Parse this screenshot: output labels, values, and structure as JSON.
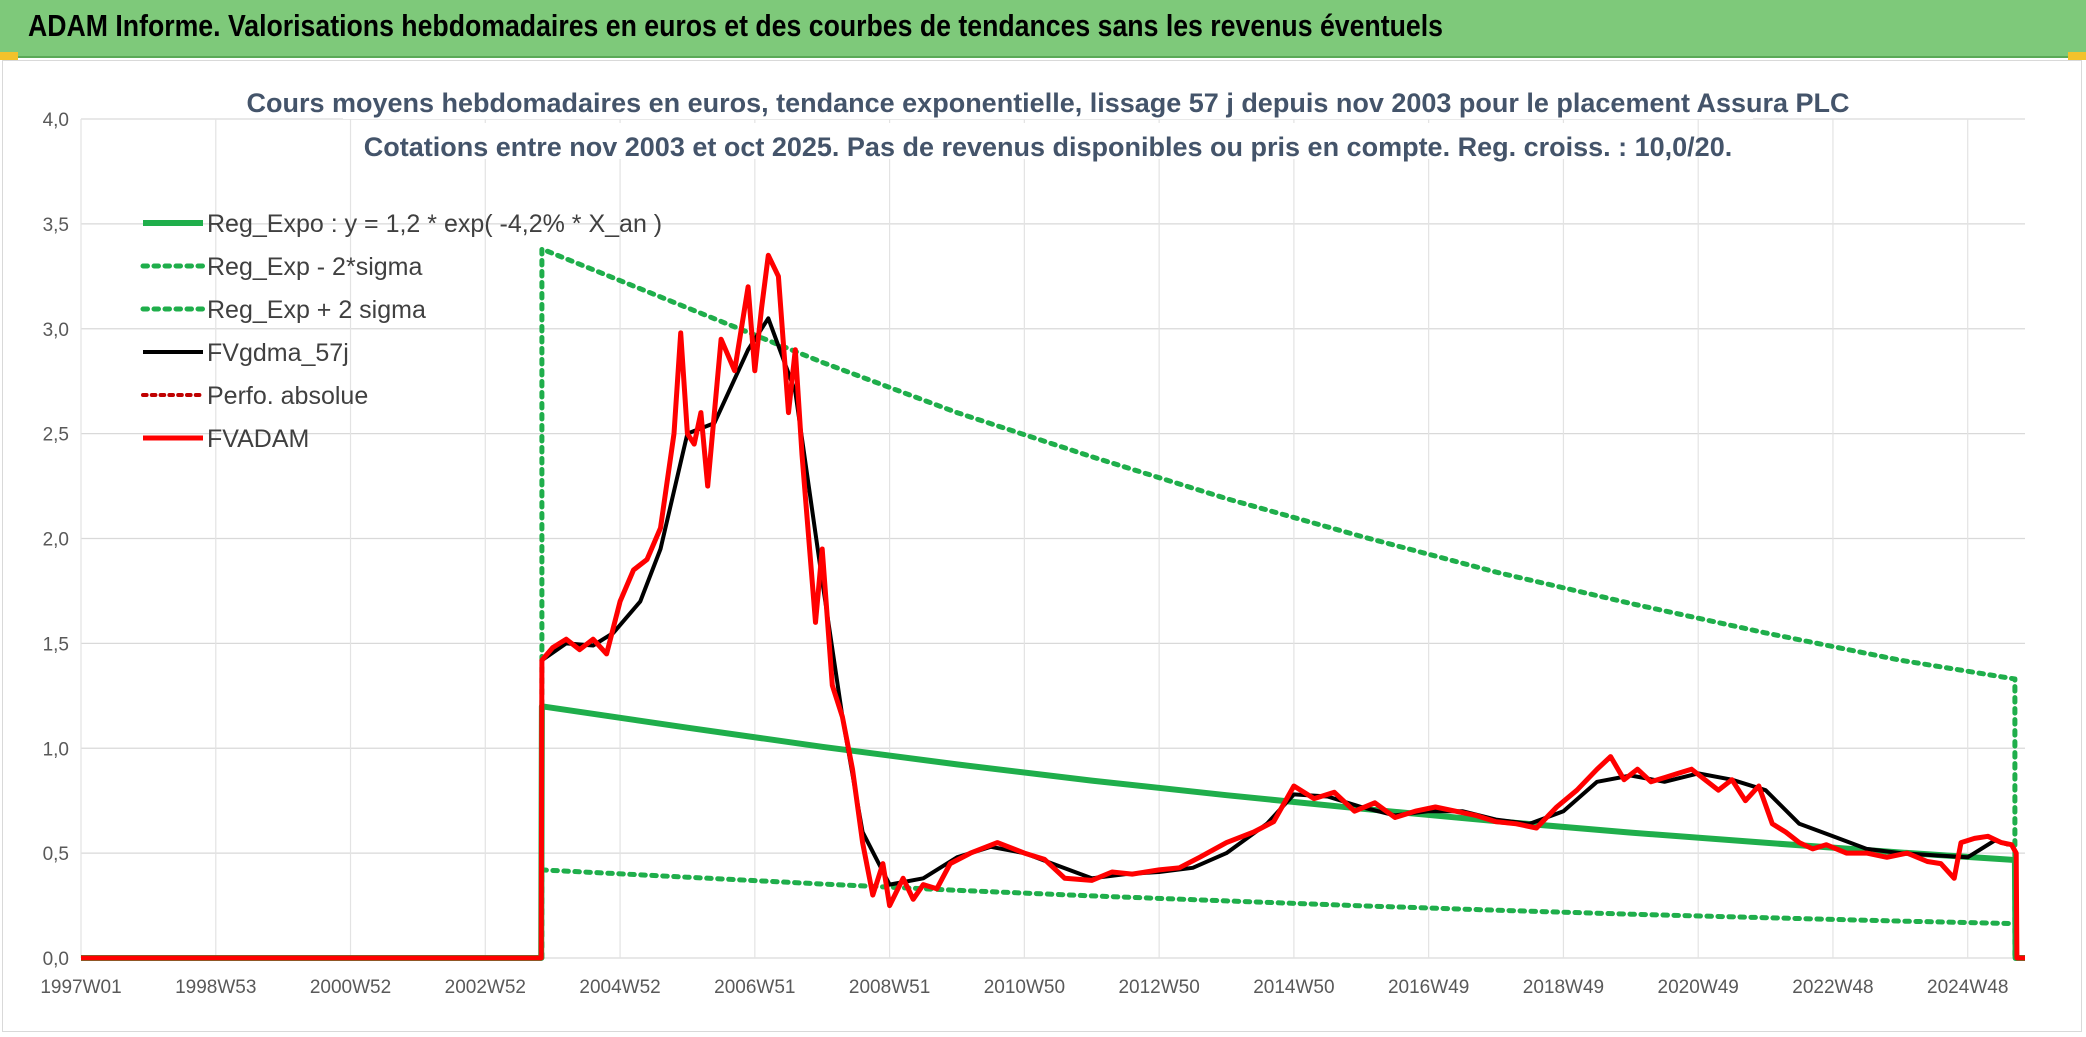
{
  "banner": {
    "title": "ADAM Informe. Valorisations hebdomadaires en euros et des courbes de tendances sans les revenus éventuels",
    "background": "#7ec97a",
    "corner_accent": "#f2c22b"
  },
  "chart_data": {
    "type": "line",
    "title": "Cours moyens hebdomadaires en euros, tendance exponentielle, lissage 57 j depuis nov 2003 pour le placement Assura PLC",
    "subtitle": "Cotations entre nov 2003 et oct 2025. Pas de revenus disponibles ou pris en compte. Reg. croiss. : 10,0/20.",
    "xlabel": "",
    "ylabel": "",
    "xlim": [
      1997.0,
      2025.85
    ],
    "ylim": [
      0,
      4
    ],
    "x_ticks": [
      {
        "label": "1997W01",
        "x": 1997.0
      },
      {
        "label": "1998W53",
        "x": 1999.0
      },
      {
        "label": "2000W52",
        "x": 2001.0
      },
      {
        "label": "2002W52",
        "x": 2003.0
      },
      {
        "label": "2004W52",
        "x": 2005.0
      },
      {
        "label": "2006W51",
        "x": 2007.0
      },
      {
        "label": "2008W51",
        "x": 2009.0
      },
      {
        "label": "2010W50",
        "x": 2011.0
      },
      {
        "label": "2012W50",
        "x": 2013.0
      },
      {
        "label": "2014W50",
        "x": 2015.0
      },
      {
        "label": "2016W49",
        "x": 2017.0
      },
      {
        "label": "2018W49",
        "x": 2019.0
      },
      {
        "label": "2020W49",
        "x": 2021.0
      },
      {
        "label": "2022W48",
        "x": 2023.0
      },
      {
        "label": "2024W48",
        "x": 2025.0
      }
    ],
    "y_ticks": [
      "0,0",
      "0,5",
      "1,0",
      "1,5",
      "2,0",
      "2,5",
      "3,0",
      "3,5",
      "4,0"
    ],
    "y_tick_values": [
      0,
      0.5,
      1,
      1.5,
      2,
      2.5,
      3,
      3.5,
      4
    ],
    "grid": true,
    "legend_position": "top-left",
    "series": [
      {
        "name": "Reg_Expo : y = 1,2 * exp( -4,2% *  X_an )",
        "style": "solid",
        "color": "#1fae4b",
        "width": 6,
        "x": [
          1997.0,
          2003.83,
          2003.84,
          2006,
          2008,
          2010,
          2012,
          2014,
          2016,
          2018,
          2020,
          2022,
          2024,
          2025.7,
          2025.71,
          2025.85
        ],
        "y": [
          0,
          0,
          1.2,
          1.098,
          1.007,
          0.923,
          0.846,
          0.776,
          0.712,
          0.652,
          0.598,
          0.549,
          0.503,
          0.467,
          0,
          0
        ]
      },
      {
        "name": "Reg_Exp - 2*sigma",
        "style": "dotted",
        "color": "#1fae4b",
        "width": 5,
        "x": [
          2003.84,
          2006,
          2008,
          2010,
          2012,
          2014,
          2016,
          2018,
          2020,
          2022,
          2024,
          2025.7
        ],
        "y": [
          0.42,
          0.385,
          0.353,
          0.323,
          0.296,
          0.272,
          0.249,
          0.228,
          0.209,
          0.192,
          0.176,
          0.164
        ]
      },
      {
        "name": "Reg_Exp + 2 sigma",
        "style": "dotted",
        "color": "#1fae4b",
        "width": 5,
        "x": [
          2003.84,
          2003.84,
          2006,
          2008,
          2010,
          2012,
          2014,
          2016,
          2018,
          2020,
          2022,
          2024,
          2025.7,
          2025.7
        ],
        "y": [
          0,
          3.38,
          3.1,
          2.84,
          2.6,
          2.39,
          2.19,
          2.01,
          1.84,
          1.69,
          1.55,
          1.42,
          1.33,
          0
        ]
      },
      {
        "name": "FVgdma_57j",
        "style": "solid",
        "color": "#000000",
        "width": 4,
        "x": [
          1997.0,
          2003.83,
          2003.84,
          2004.2,
          2004.6,
          2004.9,
          2005.3,
          2005.6,
          2006.0,
          2006.4,
          2006.9,
          2007.2,
          2007.6,
          2008.0,
          2008.3,
          2008.6,
          2009.0,
          2009.5,
          2010.0,
          2010.5,
          2011.0,
          2011.5,
          2012.0,
          2012.5,
          2013.0,
          2013.5,
          2014.0,
          2014.6,
          2015.0,
          2015.5,
          2016.0,
          2016.5,
          2017.0,
          2017.5,
          2018.0,
          2018.5,
          2019.0,
          2019.5,
          2020.0,
          2020.5,
          2021.0,
          2021.5,
          2022.0,
          2022.5,
          2023.0,
          2023.5,
          2024.0,
          2024.5,
          2025.0,
          2025.4,
          2025.6
        ],
        "y": [
          0,
          0,
          1.42,
          1.5,
          1.49,
          1.55,
          1.7,
          1.95,
          2.5,
          2.55,
          2.9,
          3.05,
          2.7,
          1.8,
          1.15,
          0.6,
          0.35,
          0.38,
          0.48,
          0.53,
          0.5,
          0.44,
          0.38,
          0.4,
          0.41,
          0.43,
          0.5,
          0.64,
          0.78,
          0.77,
          0.72,
          0.68,
          0.7,
          0.7,
          0.66,
          0.64,
          0.7,
          0.84,
          0.87,
          0.84,
          0.88,
          0.85,
          0.8,
          0.64,
          0.58,
          0.52,
          0.5,
          0.49,
          0.48,
          0.56,
          0.54
        ]
      },
      {
        "name": "Perfo. absolue",
        "style": "dotted",
        "color": "#c00000",
        "width": 4,
        "x": [],
        "y": []
      },
      {
        "name": "FVADAM",
        "style": "solid",
        "color": "#ff0000",
        "width": 5,
        "x": [
          1997.0,
          2003.83,
          2003.84,
          2004.0,
          2004.2,
          2004.4,
          2004.6,
          2004.8,
          2005.0,
          2005.2,
          2005.4,
          2005.6,
          2005.8,
          2005.9,
          2006.0,
          2006.1,
          2006.2,
          2006.3,
          2006.5,
          2006.7,
          2006.9,
          2007.0,
          2007.1,
          2007.2,
          2007.35,
          2007.5,
          2007.6,
          2007.7,
          2007.9,
          2008.0,
          2008.15,
          2008.3,
          2008.45,
          2008.6,
          2008.75,
          2008.9,
          2009.0,
          2009.2,
          2009.35,
          2009.5,
          2009.7,
          2009.9,
          2010.2,
          2010.6,
          2011.0,
          2011.3,
          2011.6,
          2012.0,
          2012.3,
          2012.6,
          2013.0,
          2013.3,
          2013.6,
          2014.0,
          2014.4,
          2014.7,
          2015.0,
          2015.3,
          2015.6,
          2015.9,
          2016.2,
          2016.5,
          2016.8,
          2017.1,
          2017.4,
          2017.7,
          2018.0,
          2018.3,
          2018.6,
          2018.9,
          2019.2,
          2019.5,
          2019.7,
          2019.9,
          2020.1,
          2020.3,
          2020.5,
          2020.7,
          2020.9,
          2021.1,
          2021.3,
          2021.5,
          2021.7,
          2021.9,
          2022.1,
          2022.3,
          2022.5,
          2022.7,
          2022.9,
          2023.2,
          2023.5,
          2023.8,
          2024.1,
          2024.4,
          2024.6,
          2024.8,
          2024.9,
          2025.1,
          2025.3,
          2025.5,
          2025.65,
          2025.72,
          2025.73,
          2025.85
        ],
        "y": [
          0,
          0,
          1.42,
          1.48,
          1.52,
          1.47,
          1.52,
          1.45,
          1.7,
          1.85,
          1.9,
          2.05,
          2.5,
          2.98,
          2.5,
          2.45,
          2.6,
          2.25,
          2.95,
          2.8,
          3.2,
          2.8,
          3.1,
          3.35,
          3.25,
          2.6,
          2.9,
          2.4,
          1.6,
          1.95,
          1.3,
          1.15,
          0.9,
          0.55,
          0.3,
          0.45,
          0.25,
          0.38,
          0.28,
          0.35,
          0.33,
          0.45,
          0.5,
          0.55,
          0.5,
          0.47,
          0.38,
          0.37,
          0.41,
          0.4,
          0.42,
          0.43,
          0.48,
          0.55,
          0.6,
          0.65,
          0.82,
          0.76,
          0.79,
          0.7,
          0.74,
          0.67,
          0.7,
          0.72,
          0.7,
          0.68,
          0.65,
          0.64,
          0.62,
          0.72,
          0.8,
          0.9,
          0.96,
          0.85,
          0.9,
          0.84,
          0.86,
          0.88,
          0.9,
          0.85,
          0.8,
          0.85,
          0.75,
          0.82,
          0.64,
          0.6,
          0.55,
          0.52,
          0.54,
          0.5,
          0.5,
          0.48,
          0.5,
          0.46,
          0.45,
          0.38,
          0.55,
          0.57,
          0.58,
          0.55,
          0.54,
          0.5,
          0,
          0
        ]
      }
    ]
  }
}
